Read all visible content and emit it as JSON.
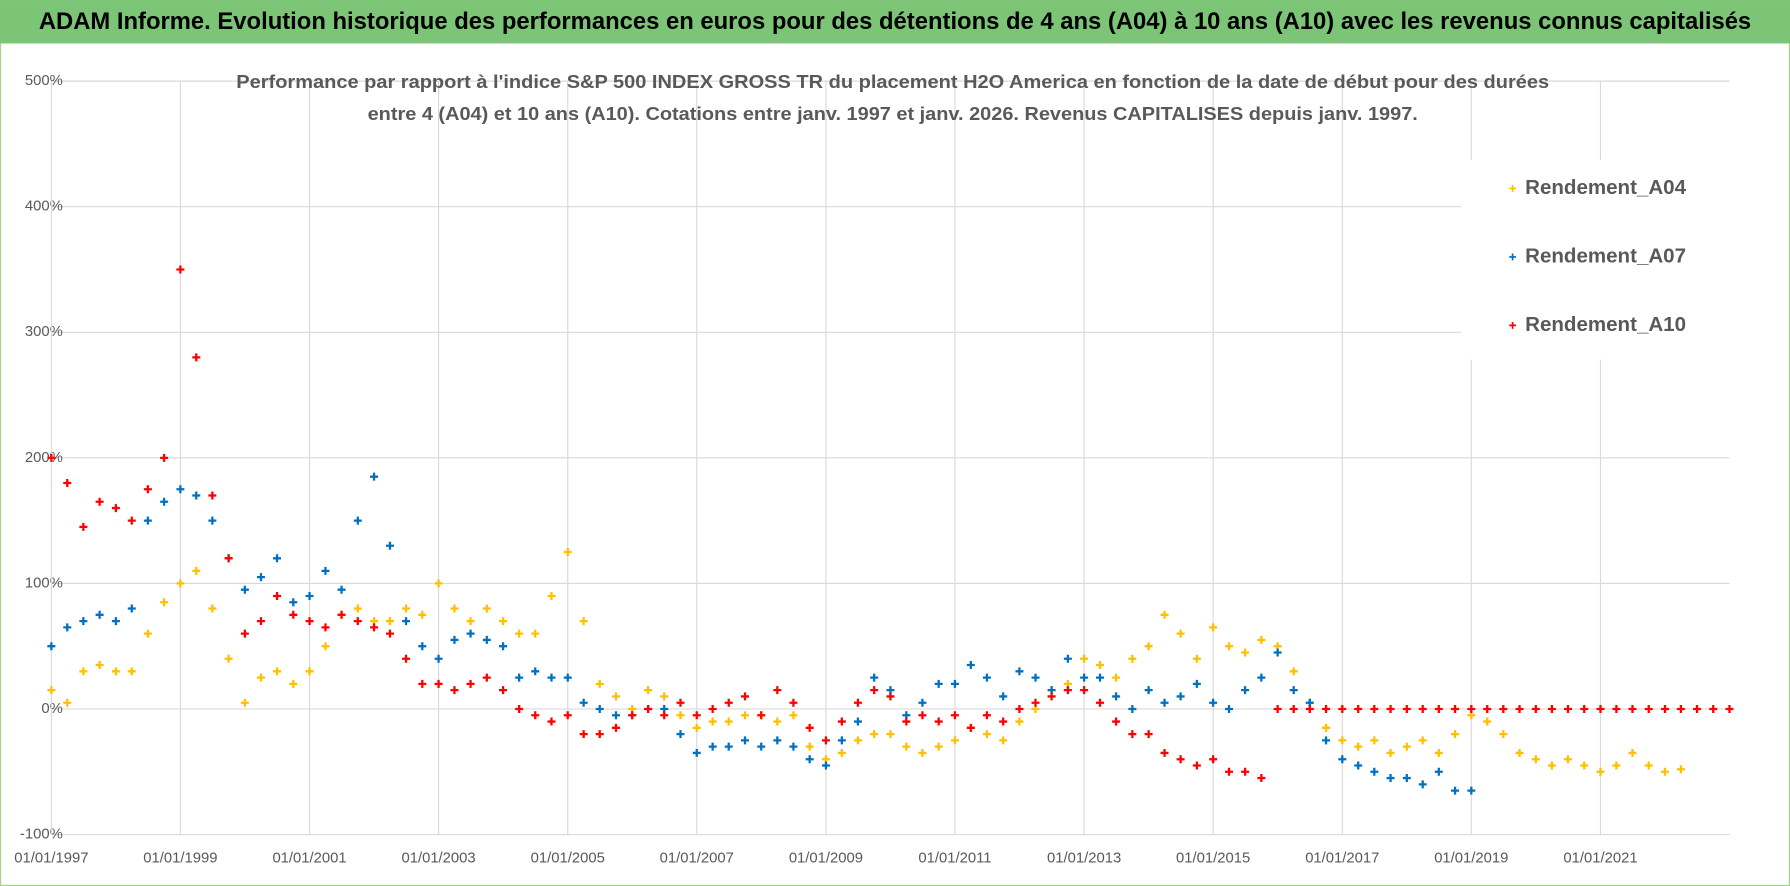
{
  "chart_data": {
    "type": "scatter",
    "title": "ADAM Informe. Evolution historique des performances en euros pour des détentions de 4 ans (A04) à 10 ans (A10) avec les revenus connus capitalisés",
    "subtitle": [
      "Performance par rapport à l'indice S&P 500 INDEX GROSS TR  du placement H2O America en fonction de la date de début pour des durées",
      "entre 4 (A04) et 10 ans (A10).  Cotations entre janv. 1997 et janv. 2026. Revenus CAPITALISES depuis janv. 1997."
    ],
    "x": [
      "01/01/1997",
      "01/04/1997",
      "01/07/1997",
      "01/10/1997",
      "01/01/1998",
      "01/04/1998",
      "01/07/1998",
      "01/10/1998",
      "01/01/1999",
      "01/04/1999",
      "01/07/1999",
      "01/10/1999",
      "01/01/2000",
      "01/04/2000",
      "01/07/2000",
      "01/10/2000",
      "01/01/2001",
      "01/04/2001",
      "01/07/2001",
      "01/10/2001",
      "01/01/2002",
      "01/04/2002",
      "01/07/2002",
      "01/10/2002",
      "01/01/2003",
      "01/04/2003",
      "01/07/2003",
      "01/10/2003",
      "01/01/2004",
      "01/04/2004",
      "01/07/2004",
      "01/10/2004",
      "01/01/2005",
      "01/04/2005",
      "01/07/2005",
      "01/10/2005",
      "01/01/2006",
      "01/04/2006",
      "01/07/2006",
      "01/10/2006",
      "01/01/2007",
      "01/04/2007",
      "01/07/2007",
      "01/10/2007",
      "01/01/2008",
      "01/04/2008",
      "01/07/2008",
      "01/10/2008",
      "01/01/2009",
      "01/04/2009",
      "01/07/2009",
      "01/10/2009",
      "01/01/2010",
      "01/04/2010",
      "01/07/2010",
      "01/10/2010",
      "01/01/2011",
      "01/04/2011",
      "01/07/2011",
      "01/10/2011",
      "01/01/2012",
      "01/04/2012",
      "01/07/2012",
      "01/10/2012",
      "01/01/2013",
      "01/04/2013",
      "01/07/2013",
      "01/10/2013",
      "01/01/2014",
      "01/04/2014",
      "01/07/2014",
      "01/10/2014",
      "01/01/2015",
      "01/04/2015",
      "01/07/2015",
      "01/10/2015",
      "01/01/2016",
      "01/04/2016",
      "01/07/2016",
      "01/10/2016",
      "01/01/2017",
      "01/04/2017",
      "01/07/2017",
      "01/10/2017",
      "01/01/2018",
      "01/04/2018",
      "01/07/2018",
      "01/10/2018",
      "01/01/2019",
      "01/04/2019",
      "01/07/2019",
      "01/10/2019",
      "01/01/2020",
      "01/04/2020",
      "01/07/2020",
      "01/10/2020",
      "01/01/2021",
      "01/04/2021",
      "01/07/2021",
      "01/10/2021",
      "01/01/2022",
      "01/04/2022",
      "01/07/2022",
      "01/10/2022",
      "01/01/2023"
    ],
    "series": [
      {
        "name": "Rendement_A04",
        "color": "#ffc000",
        "values": [
          15,
          5,
          30,
          35,
          30,
          30,
          60,
          85,
          100,
          110,
          80,
          40,
          5,
          25,
          30,
          20,
          30,
          50,
          75,
          80,
          70,
          70,
          80,
          75,
          100,
          80,
          70,
          80,
          70,
          60,
          60,
          90,
          125,
          70,
          20,
          10,
          0,
          15,
          10,
          -5,
          -15,
          -10,
          -10,
          -5,
          -5,
          -10,
          -5,
          -30,
          -40,
          -35,
          -25,
          -20,
          -20,
          -30,
          -35,
          -30,
          -25,
          -15,
          -20,
          -25,
          -10,
          0,
          15,
          20,
          40,
          35,
          25,
          40,
          50,
          75,
          60,
          40,
          65,
          50,
          45,
          55,
          50,
          30,
          5,
          -15,
          -25,
          -30,
          -25,
          -35,
          -30,
          -25,
          -35,
          -20,
          -5,
          -10,
          -20,
          -35,
          -40,
          -45,
          -40,
          -45,
          -50,
          -45,
          -35,
          -45,
          -50,
          -48,
          null,
          null,
          null
        ]
      },
      {
        "name": "Rendement_A07",
        "color": "#0070c0",
        "values": [
          50,
          65,
          70,
          75,
          70,
          80,
          150,
          165,
          175,
          170,
          150,
          120,
          95,
          105,
          120,
          85,
          90,
          110,
          95,
          150,
          185,
          130,
          70,
          50,
          40,
          55,
          60,
          55,
          50,
          25,
          30,
          25,
          25,
          5,
          0,
          -5,
          -5,
          0,
          0,
          -20,
          -35,
          -30,
          -30,
          -25,
          -30,
          -25,
          -30,
          -40,
          -45,
          -25,
          -10,
          25,
          15,
          -5,
          5,
          20,
          20,
          35,
          25,
          10,
          30,
          25,
          15,
          40,
          25,
          25,
          10,
          0,
          15,
          5,
          10,
          20,
          5,
          0,
          15,
          25,
          45,
          15,
          5,
          -25,
          -40,
          -45,
          -50,
          -55,
          -55,
          -60,
          -50,
          -65,
          -65,
          null,
          null,
          null,
          null,
          null,
          null,
          null,
          null,
          null,
          null,
          null,
          null,
          null,
          null,
          null,
          null
        ]
      },
      {
        "name": "Rendement_A10",
        "color": "#ff0000",
        "values": [
          200,
          180,
          145,
          165,
          160,
          150,
          175,
          200,
          350,
          280,
          170,
          120,
          60,
          70,
          90,
          75,
          70,
          65,
          75,
          70,
          65,
          60,
          40,
          20,
          20,
          15,
          20,
          25,
          15,
          0,
          -5,
          -10,
          -5,
          -20,
          -20,
          -15,
          -5,
          0,
          -5,
          5,
          -5,
          0,
          5,
          10,
          -5,
          15,
          5,
          -15,
          -25,
          -10,
          5,
          15,
          10,
          -10,
          -5,
          -10,
          -5,
          -15,
          -5,
          -10,
          0,
          5,
          10,
          15,
          15,
          5,
          -10,
          -20,
          -20,
          -35,
          -40,
          -45,
          -40,
          -50,
          -50,
          -55,
          0,
          0,
          0,
          0,
          0,
          0,
          0,
          0,
          0,
          0,
          0,
          0,
          0,
          0,
          0,
          0,
          0,
          0,
          0,
          0,
          0,
          0,
          0,
          0,
          0,
          0,
          0,
          0,
          0
        ]
      }
    ],
    "xlim": [
      "01/01/1997",
      "01/01/2023"
    ],
    "xticks": [
      "01/01/1997",
      "01/01/1999",
      "01/01/2001",
      "01/01/2003",
      "01/01/2005",
      "01/01/2007",
      "01/01/2009",
      "01/01/2011",
      "01/01/2013",
      "01/01/2015",
      "01/01/2017",
      "01/01/2019",
      "01/01/2021"
    ],
    "ylim": [
      -100,
      500
    ],
    "yticks": [
      {
        "value": -100,
        "label": "-100%"
      },
      {
        "value": 0,
        "label": "0%"
      },
      {
        "value": 100,
        "label": "100%"
      },
      {
        "value": 200,
        "label": "200%"
      },
      {
        "value": 300,
        "label": "300%"
      },
      {
        "value": 400,
        "label": "400%"
      },
      {
        "value": 500,
        "label": "500%"
      }
    ],
    "grid": true,
    "legend": "upper right"
  }
}
